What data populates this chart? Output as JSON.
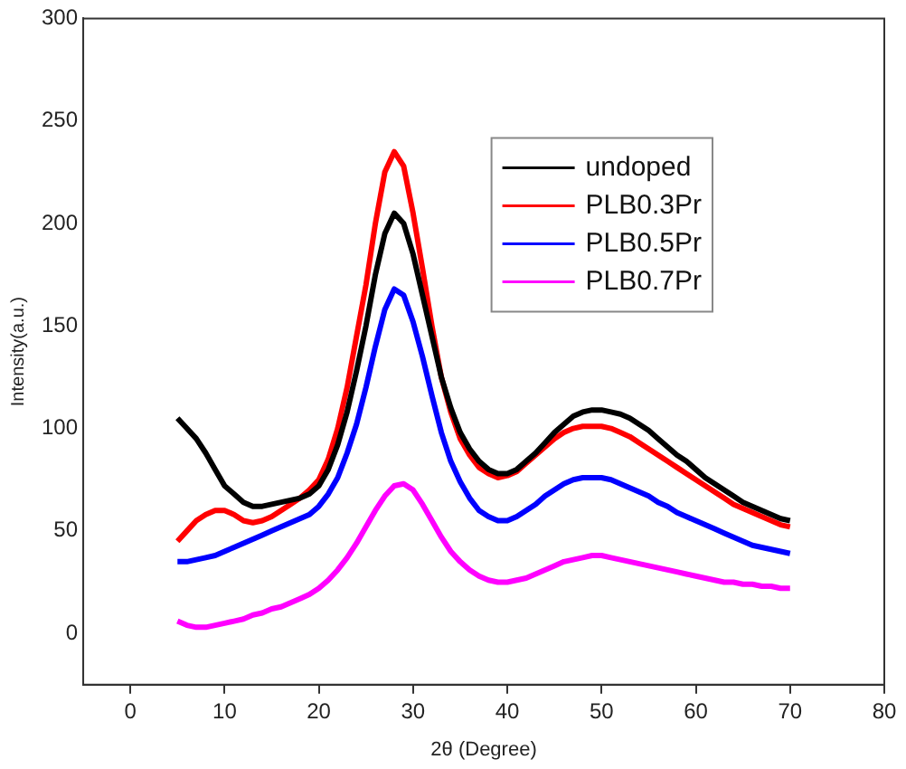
{
  "chart_data": {
    "type": "line",
    "xlabel": "2θ (Degree)",
    "ylabel": "Intensity(a.u.)",
    "x": [
      5,
      6,
      7,
      8,
      9,
      10,
      11,
      12,
      13,
      14,
      15,
      16,
      17,
      18,
      19,
      20,
      21,
      22,
      23,
      24,
      25,
      26,
      27,
      28,
      29,
      30,
      31,
      32,
      33,
      34,
      35,
      36,
      37,
      38,
      39,
      40,
      41,
      42,
      43,
      44,
      45,
      46,
      47,
      48,
      49,
      50,
      51,
      52,
      53,
      54,
      55,
      56,
      57,
      58,
      59,
      60,
      61,
      62,
      63,
      64,
      65,
      66,
      67,
      68,
      69,
      70
    ],
    "series": [
      {
        "name": "undoped",
        "color": "#000000",
        "values": [
          105,
          100,
          95,
          88,
          80,
          72,
          68,
          64,
          62,
          62,
          63,
          64,
          65,
          66,
          68,
          72,
          80,
          92,
          108,
          128,
          150,
          175,
          195,
          205,
          200,
          185,
          165,
          145,
          125,
          110,
          98,
          90,
          84,
          80,
          78,
          78,
          80,
          84,
          88,
          93,
          98,
          102,
          106,
          108,
          109,
          109,
          108,
          107,
          105,
          102,
          99,
          95,
          91,
          87,
          84,
          80,
          76,
          73,
          70,
          67,
          64,
          62,
          60,
          58,
          56,
          55
        ]
      },
      {
        "name": "PLB0.3Pr",
        "color": "#ff0000",
        "values": [
          45,
          50,
          55,
          58,
          60,
          60,
          58,
          55,
          54,
          55,
          57,
          60,
          63,
          66,
          70,
          75,
          85,
          100,
          120,
          145,
          170,
          200,
          225,
          235,
          228,
          205,
          178,
          150,
          125,
          108,
          95,
          87,
          81,
          78,
          76,
          77,
          79,
          83,
          87,
          91,
          95,
          98,
          100,
          101,
          101,
          101,
          100,
          98,
          96,
          93,
          90,
          87,
          84,
          81,
          78,
          75,
          72,
          69,
          66,
          63,
          61,
          59,
          57,
          55,
          53,
          52
        ]
      },
      {
        "name": "PLB0.5Pr",
        "color": "#0000ff",
        "values": [
          35,
          35,
          36,
          37,
          38,
          40,
          42,
          44,
          46,
          48,
          50,
          52,
          54,
          56,
          58,
          62,
          68,
          76,
          88,
          102,
          120,
          140,
          158,
          168,
          165,
          152,
          135,
          116,
          98,
          84,
          74,
          66,
          60,
          57,
          55,
          55,
          57,
          60,
          63,
          67,
          70,
          73,
          75,
          76,
          76,
          76,
          75,
          73,
          71,
          69,
          67,
          64,
          62,
          59,
          57,
          55,
          53,
          51,
          49,
          47,
          45,
          43,
          42,
          41,
          40,
          39
        ]
      },
      {
        "name": "PLB0.7Pr",
        "color": "#ff00ff",
        "values": [
          6,
          4,
          3,
          3,
          4,
          5,
          6,
          7,
          9,
          10,
          12,
          13,
          15,
          17,
          19,
          22,
          26,
          31,
          37,
          44,
          52,
          60,
          67,
          72,
          73,
          70,
          63,
          55,
          47,
          40,
          35,
          31,
          28,
          26,
          25,
          25,
          26,
          27,
          29,
          31,
          33,
          35,
          36,
          37,
          38,
          38,
          37,
          36,
          35,
          34,
          33,
          32,
          31,
          30,
          29,
          28,
          27,
          26,
          25,
          25,
          24,
          24,
          23,
          23,
          22,
          22
        ]
      }
    ],
    "xlim": [
      -5,
      80
    ],
    "xticks": [
      0,
      10,
      20,
      30,
      40,
      50,
      60,
      70,
      80
    ],
    "ylim": [
      -25,
      300
    ],
    "yticks": [
      0,
      50,
      100,
      150,
      200,
      250,
      300
    ],
    "grid": false,
    "legend": "top right",
    "marker": "none",
    "line_style": "solid"
  }
}
